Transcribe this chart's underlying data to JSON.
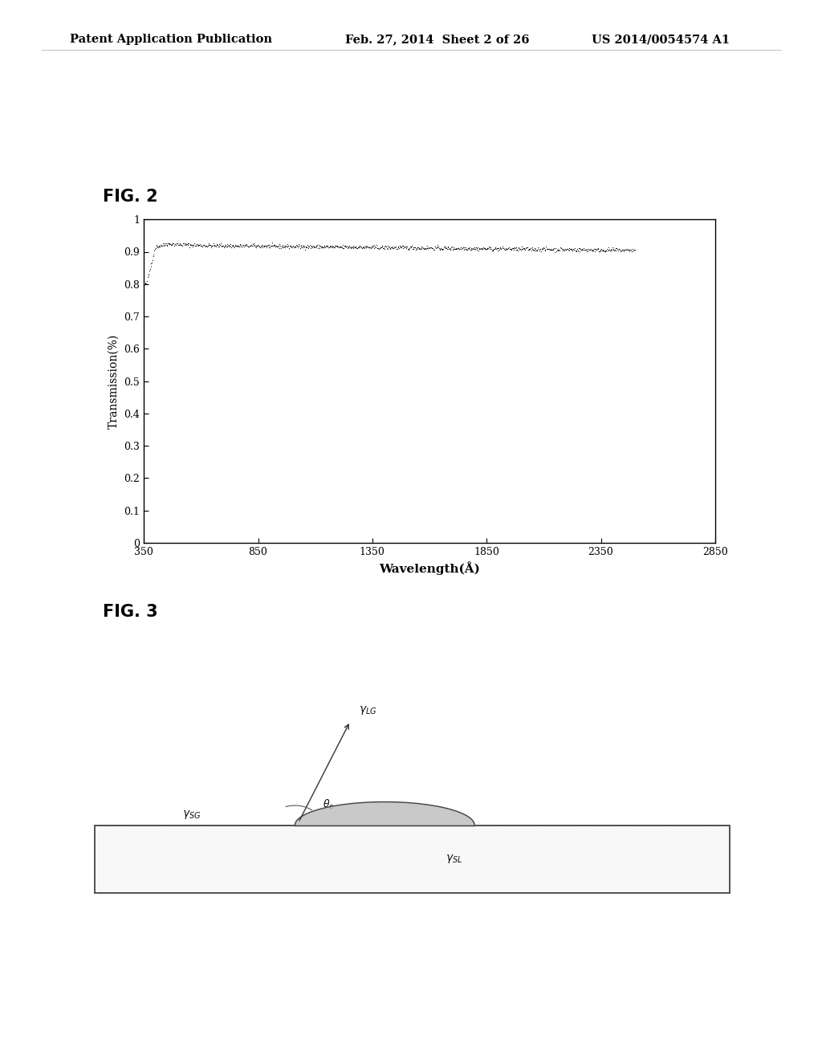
{
  "header_left": "Patent Application Publication",
  "header_mid": "Feb. 27, 2014  Sheet 2 of 26",
  "header_right": "US 2014/0054574 A1",
  "fig2_label": "FIG. 2",
  "fig2_xlabel": "Wavelength(Å)",
  "fig2_ylabel": "Transmission(%)",
  "fig2_xlim": [
    350,
    2850
  ],
  "fig2_ylim": [
    0,
    1
  ],
  "fig2_xticks": [
    350,
    850,
    1350,
    1850,
    2350,
    2850
  ],
  "fig2_yticks": [
    0,
    0.1,
    0.2,
    0.3,
    0.4,
    0.5,
    0.6,
    0.7,
    0.8,
    0.9,
    1
  ],
  "fig2_ytick_labels": [
    "0",
    "0.1",
    "0.2",
    "0.3",
    "0.4",
    "0.5",
    "0.6",
    "0.7",
    "0.8",
    "0.9",
    "1"
  ],
  "fig3_label": "FIG. 3",
  "background_color": "#ffffff",
  "text_color": "#000000"
}
